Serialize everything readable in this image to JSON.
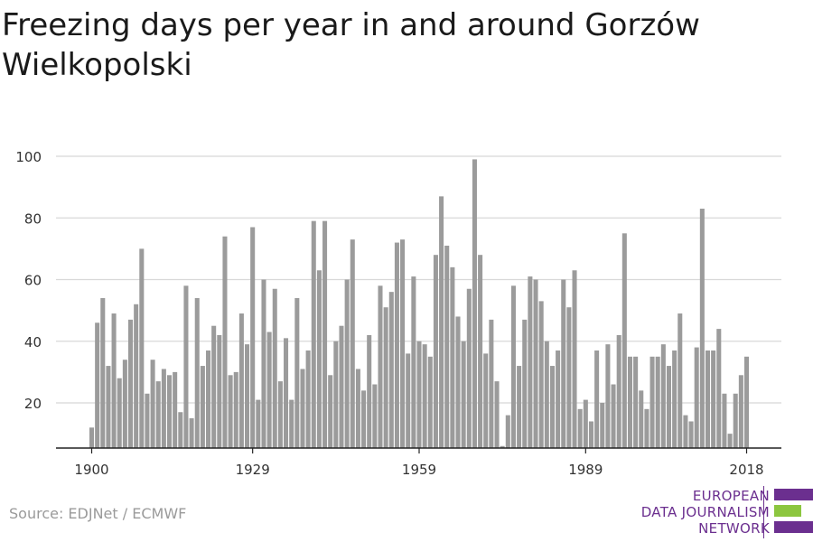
{
  "title": "Freezing days per year in and around Gorzów Wielkopolski",
  "source": "Source: EDJNet / ECMWF",
  "logo": {
    "line1": "EUROPEAN",
    "line2": "DATA JOURNALISM",
    "line3": "NETWORK"
  },
  "colors": {
    "bar": "#9b9b9b",
    "grid": "#d8d8d8",
    "axis": "#222222",
    "logo_purple": "#6b2f8f",
    "logo_green": "#8cc63f"
  },
  "chart_data": {
    "type": "bar",
    "title": "Freezing days per year in and around Gorzów Wielkopolski",
    "xlabel": "",
    "ylabel": "",
    "ylim": [
      5,
      104
    ],
    "yticks": [
      20,
      40,
      60,
      80,
      100
    ],
    "xticks": [
      1900,
      1929,
      1959,
      1989,
      2018
    ],
    "grid": true,
    "x": [
      1900,
      1901,
      1902,
      1903,
      1904,
      1905,
      1906,
      1907,
      1908,
      1909,
      1910,
      1911,
      1912,
      1913,
      1914,
      1915,
      1916,
      1917,
      1918,
      1919,
      1920,
      1921,
      1922,
      1923,
      1924,
      1925,
      1926,
      1927,
      1928,
      1929,
      1930,
      1931,
      1932,
      1933,
      1934,
      1935,
      1936,
      1937,
      1938,
      1939,
      1940,
      1941,
      1942,
      1943,
      1944,
      1945,
      1946,
      1947,
      1948,
      1949,
      1950,
      1951,
      1952,
      1953,
      1954,
      1955,
      1956,
      1957,
      1958,
      1959,
      1960,
      1961,
      1962,
      1963,
      1964,
      1965,
      1966,
      1967,
      1968,
      1969,
      1970,
      1971,
      1972,
      1973,
      1974,
      1975,
      1976,
      1977,
      1978,
      1979,
      1980,
      1981,
      1982,
      1983,
      1984,
      1985,
      1986,
      1987,
      1988,
      1989,
      1990,
      1991,
      1992,
      1993,
      1994,
      1995,
      1996,
      1997,
      1998,
      1999,
      2000,
      2001,
      2002,
      2003,
      2004,
      2005,
      2006,
      2007,
      2008,
      2009,
      2010,
      2011,
      2012,
      2013,
      2014,
      2015,
      2016,
      2017,
      2018
    ],
    "values": [
      12,
      46,
      54,
      32,
      49,
      28,
      34,
      47,
      52,
      70,
      23,
      34,
      27,
      31,
      29,
      30,
      17,
      58,
      15,
      54,
      32,
      37,
      45,
      42,
      74,
      29,
      30,
      49,
      39,
      77,
      21,
      60,
      43,
      57,
      27,
      41,
      21,
      54,
      31,
      37,
      79,
      63,
      79,
      29,
      40,
      45,
      60,
      73,
      31,
      24,
      42,
      26,
      58,
      51,
      56,
      72,
      73,
      36,
      61,
      40,
      39,
      35,
      68,
      87,
      71,
      64,
      48,
      40,
      57,
      99,
      68,
      36,
      47,
      27,
      6,
      16,
      58,
      32,
      47,
      61,
      60,
      53,
      40,
      32,
      37,
      60,
      51,
      63,
      18,
      21,
      14,
      37,
      20,
      39,
      26,
      42,
      75,
      35,
      35,
      24,
      18,
      35,
      35,
      39,
      32,
      37,
      49,
      16,
      14,
      38,
      83,
      37,
      37,
      44,
      23,
      10,
      23,
      29,
      35
    ]
  }
}
